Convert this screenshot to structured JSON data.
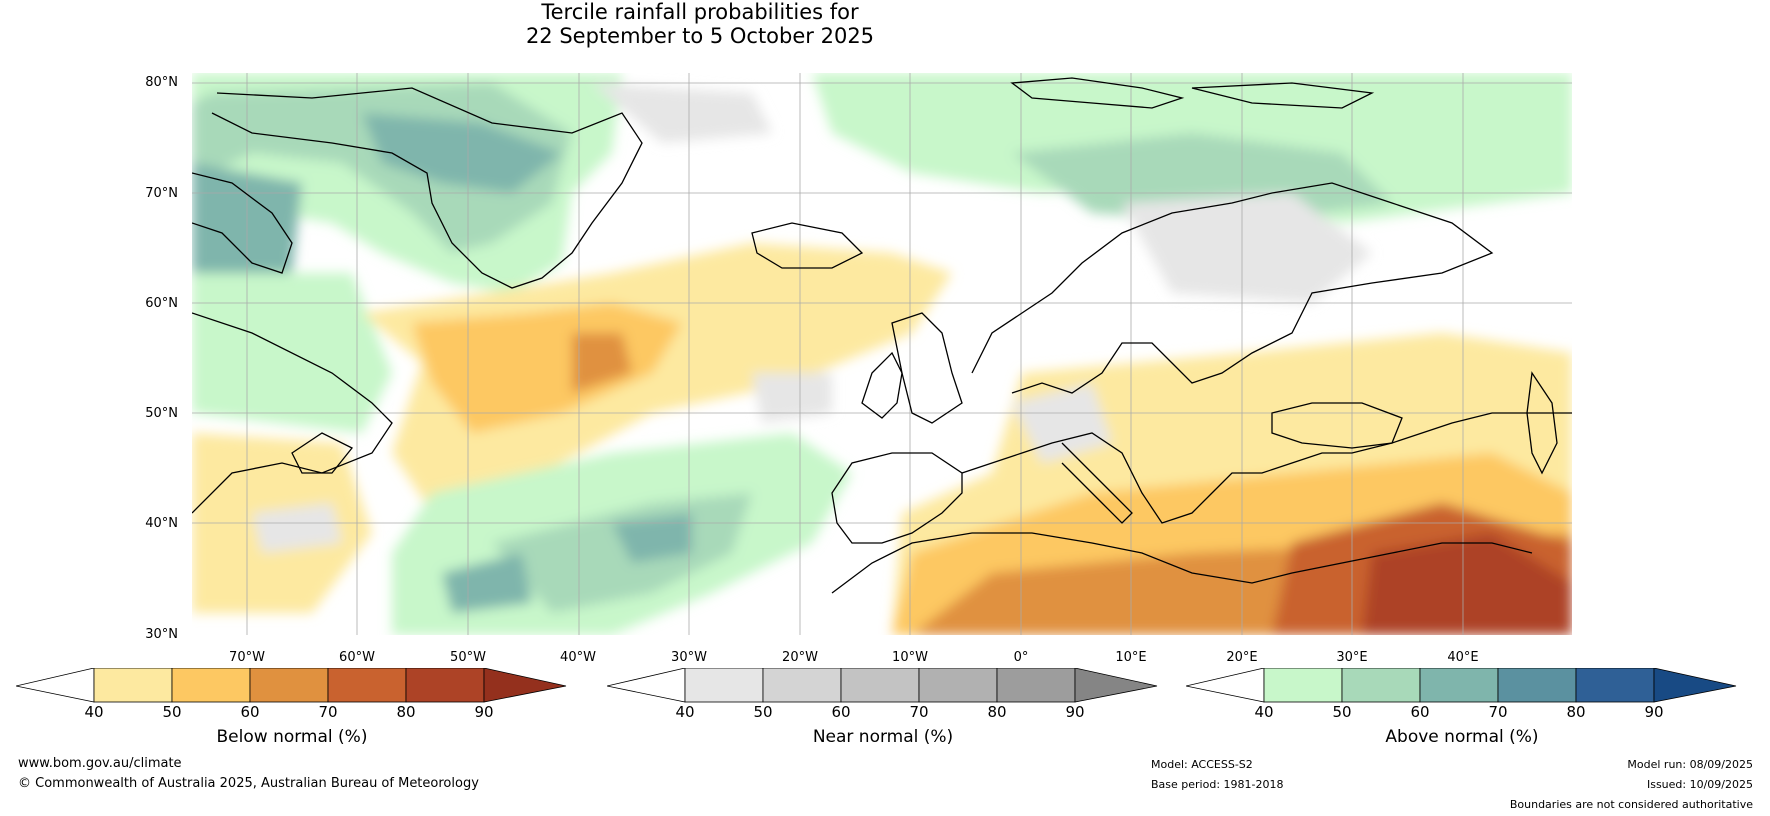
{
  "title": {
    "line1": "Tercile rainfall probabilities for",
    "line2": "22 September to 5 October 2025"
  },
  "axes": {
    "lat_labels": [
      "80°N",
      "70°N",
      "60°N",
      "50°N",
      "40°N",
      "30°N"
    ],
    "lon_labels": [
      "70°W",
      "60°W",
      "50°W",
      "40°W",
      "30°W",
      "20°W",
      "10°W",
      "0°",
      "10°E",
      "20°E",
      "30°E",
      "40°E"
    ]
  },
  "legend": {
    "below": {
      "label": "Below normal (%)",
      "ticks": [
        "40",
        "50",
        "60",
        "70",
        "80",
        "90"
      ],
      "colors": [
        "#ffffff",
        "#fde9a0",
        "#fdc862",
        "#e0913f",
        "#c9622f",
        "#ad4326",
        "#94301d"
      ]
    },
    "near": {
      "label": "Near normal (%)",
      "ticks": [
        "40",
        "50",
        "60",
        "70",
        "80",
        "90"
      ],
      "colors": [
        "#ffffff",
        "#e6e6e6",
        "#d4d4d4",
        "#c3c3c3",
        "#b1b1b1",
        "#9d9d9d",
        "#858585"
      ]
    },
    "above": {
      "label": "Above normal (%)",
      "ticks": [
        "40",
        "50",
        "60",
        "70",
        "80",
        "90"
      ],
      "colors": [
        "#ffffff",
        "#c8f7ca",
        "#a8d9b9",
        "#7fb5ac",
        "#5b91a0",
        "#2f6096",
        "#184a84"
      ]
    }
  },
  "footer": {
    "website": "www.bom.gov.au/climate",
    "copyright": "© Commonwealth of Australia 2025, Australian Bureau of Meteorology",
    "model": "Model: ACCESS-S2",
    "base_period": "Base period: 1981-2018",
    "model_run": "Model run: 08/09/2025",
    "issued": "Issued: 10/09/2025",
    "disclaimer": "Boundaries are not considered authoritative"
  }
}
